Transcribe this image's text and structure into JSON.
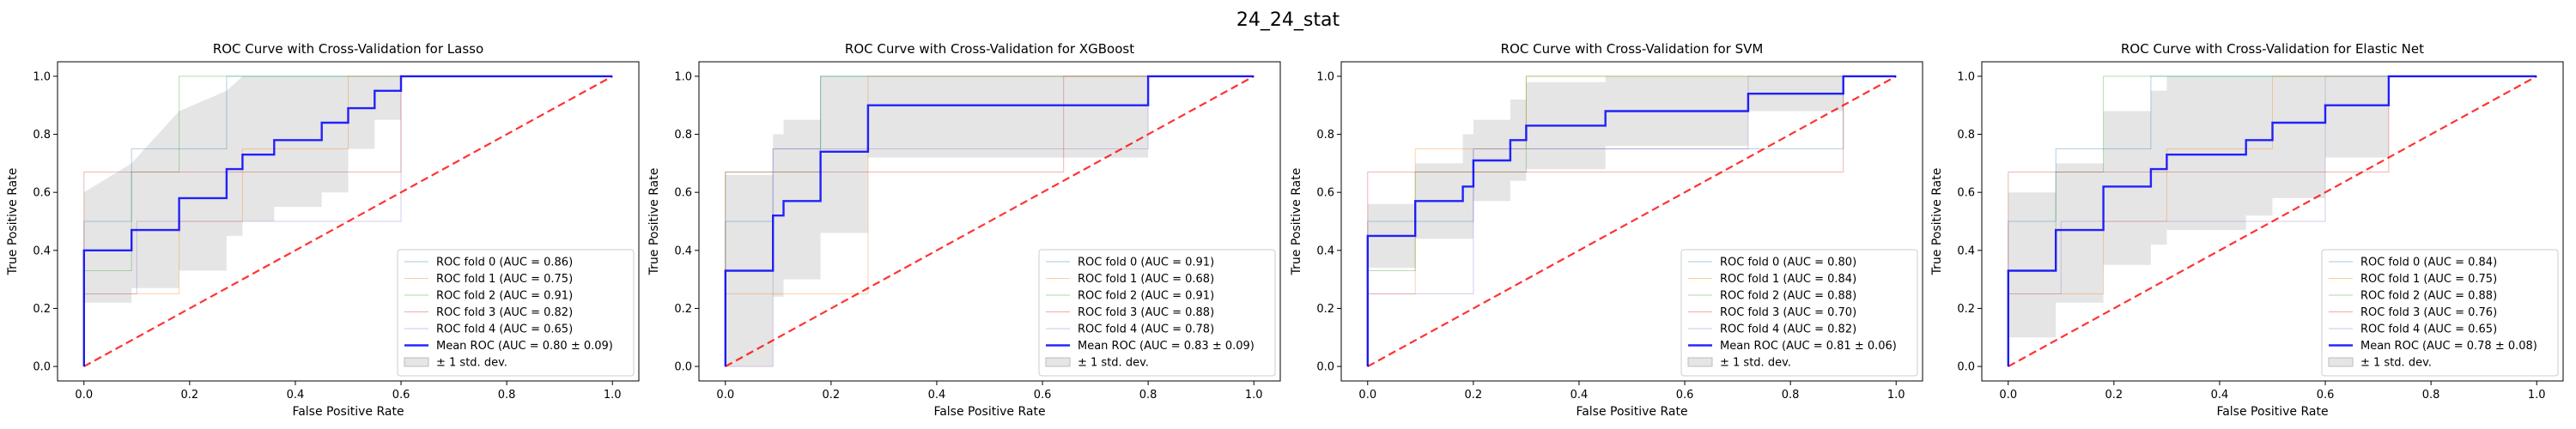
{
  "suptitle": "24_24_stat",
  "chart_data": [
    {
      "type": "line",
      "title": "ROC Curve with Cross-Validation for Lasso",
      "xlabel": "False Positive Rate",
      "ylabel": "True Positive Rate",
      "xlim": [
        -0.05,
        1.05
      ],
      "ylim": [
        -0.05,
        1.05
      ],
      "xticks": [
        "0.0",
        "0.2",
        "0.4",
        "0.6",
        "0.8",
        "1.0"
      ],
      "yticks": [
        "0.0",
        "0.2",
        "0.4",
        "0.6",
        "0.8",
        "1.0"
      ],
      "legend_position": "lower right",
      "series": [
        {
          "name": "ROC fold 0 (AUC = 0.86)",
          "color": "#1f77b4",
          "x": [
            0,
            0,
            0.09,
            0.09,
            0.27,
            0.27,
            0.55,
            0.55,
            1
          ],
          "y": [
            0,
            0.5,
            0.5,
            0.75,
            0.75,
            1,
            1,
            1,
            1
          ]
        },
        {
          "name": "ROC fold 1 (AUC = 0.75)",
          "color": "#ff7f0e",
          "x": [
            0,
            0,
            0.18,
            0.18,
            0.3,
            0.3,
            0.5,
            0.5,
            1
          ],
          "y": [
            0,
            0.25,
            0.25,
            0.5,
            0.5,
            0.75,
            0.75,
            1,
            1
          ]
        },
        {
          "name": "ROC fold 2 (AUC = 0.91)",
          "color": "#2ca02c",
          "x": [
            0,
            0,
            0.09,
            0.09,
            0.18,
            0.18,
            1
          ],
          "y": [
            0,
            0.33,
            0.33,
            0.67,
            0.67,
            1,
            1
          ]
        },
        {
          "name": "ROC fold 3 (AUC = 0.82)",
          "color": "#d62728",
          "x": [
            0,
            0,
            0.3,
            0.3,
            0.6,
            0.6,
            1
          ],
          "y": [
            0,
            0.67,
            0.67,
            0.67,
            0.67,
            1,
            1
          ]
        },
        {
          "name": "ROC fold 4 (AUC = 0.65)",
          "color": "#9467bd",
          "x": [
            0,
            0,
            0.1,
            0.1,
            0.3,
            0.3,
            0.6,
            0.6,
            1
          ],
          "y": [
            0,
            0.25,
            0.25,
            0.5,
            0.5,
            0.5,
            0.5,
            1,
            1
          ]
        }
      ],
      "mean": {
        "name": "Mean ROC (AUC = 0.80 ± 0.09)",
        "color": "#0000ff",
        "x": [
          0,
          0,
          0.09,
          0.09,
          0.18,
          0.18,
          0.27,
          0.27,
          0.3,
          0.3,
          0.36,
          0.36,
          0.45,
          0.45,
          0.5,
          0.5,
          0.55,
          0.55,
          0.6,
          0.6,
          1
        ],
        "y": [
          0,
          0.4,
          0.4,
          0.47,
          0.47,
          0.58,
          0.58,
          0.68,
          0.68,
          0.73,
          0.73,
          0.78,
          0.78,
          0.84,
          0.84,
          0.89,
          0.89,
          0.95,
          0.95,
          1,
          1
        ]
      },
      "band": {
        "name": "± 1 std. dev.",
        "upper": [
          0.6,
          0.6,
          0.7,
          0.7,
          0.88,
          0.88,
          0.95,
          0.95,
          1,
          1,
          1,
          1,
          1,
          1,
          1,
          1,
          1,
          1,
          1,
          1,
          1
        ],
        "lower": [
          0,
          0.22,
          0.22,
          0.27,
          0.27,
          0.33,
          0.33,
          0.45,
          0.45,
          0.5,
          0.5,
          0.55,
          0.55,
          0.6,
          0.6,
          0.75,
          0.75,
          0.85,
          0.85,
          1,
          1
        ]
      }
    },
    {
      "type": "line",
      "title": "ROC Curve with Cross-Validation for XGBoost",
      "xlabel": "False Positive Rate",
      "ylabel": "True Positive Rate",
      "xlim": [
        -0.05,
        1.05
      ],
      "ylim": [
        -0.05,
        1.05
      ],
      "xticks": [
        "0.0",
        "0.2",
        "0.4",
        "0.6",
        "0.8",
        "1.0"
      ],
      "yticks": [
        "0.0",
        "0.2",
        "0.4",
        "0.6",
        "0.8",
        "1.0"
      ],
      "legend_position": "lower right",
      "series": [
        {
          "name": "ROC fold 0 (AUC = 0.91)",
          "color": "#1f77b4",
          "x": [
            0,
            0,
            0.09,
            0.09,
            0.18,
            0.18,
            1
          ],
          "y": [
            0,
            0.5,
            0.5,
            0.75,
            0.75,
            1,
            1
          ]
        },
        {
          "name": "ROC fold 1 (AUC = 0.68)",
          "color": "#ff7f0e",
          "x": [
            0,
            0,
            0.09,
            0.09,
            0.27,
            0.27,
            1
          ],
          "y": [
            0,
            0.25,
            0.25,
            0.25,
            0.25,
            1,
            1
          ]
        },
        {
          "name": "ROC fold 2 (AUC = 0.91)",
          "color": "#2ca02c",
          "x": [
            0,
            0,
            0.09,
            0.09,
            0.18,
            0.18,
            1
          ],
          "y": [
            0,
            0.67,
            0.67,
            0.67,
            0.67,
            1,
            1
          ]
        },
        {
          "name": "ROC fold 3 (AUC = 0.88)",
          "color": "#d62728",
          "x": [
            0,
            0,
            0.09,
            0.09,
            0.64,
            0.64,
            1
          ],
          "y": [
            0,
            0.67,
            0.67,
            0.67,
            0.67,
            1,
            1
          ]
        },
        {
          "name": "ROC fold 4 (AUC = 0.78)",
          "color": "#9467bd",
          "x": [
            0,
            0,
            0.09,
            0.09,
            0.8,
            0.8,
            1
          ],
          "y": [
            0,
            0,
            0,
            0.75,
            0.75,
            1,
            1
          ]
        }
      ],
      "mean": {
        "name": "Mean ROC (AUC = 0.83 ± 0.09)",
        "color": "#0000ff",
        "x": [
          0,
          0,
          0.09,
          0.09,
          0.11,
          0.11,
          0.18,
          0.18,
          0.27,
          0.27,
          0.8,
          0.8,
          1
        ],
        "y": [
          0,
          0.33,
          0.33,
          0.52,
          0.52,
          0.57,
          0.57,
          0.74,
          0.74,
          0.9,
          0.9,
          1,
          1
        ]
      },
      "band": {
        "name": "± 1 std. dev.",
        "upper": [
          0.33,
          0.66,
          0.66,
          0.8,
          0.8,
          0.85,
          0.85,
          1,
          1,
          1,
          1,
          1,
          1
        ],
        "lower": [
          0,
          0,
          0,
          0.24,
          0.24,
          0.3,
          0.3,
          0.46,
          0.46,
          0.72,
          0.72,
          1,
          1
        ]
      }
    },
    {
      "type": "line",
      "title": "ROC Curve with Cross-Validation for SVM",
      "xlabel": "False Positive Rate",
      "ylabel": "True Positive Rate",
      "xlim": [
        -0.05,
        1.05
      ],
      "ylim": [
        -0.05,
        1.05
      ],
      "xticks": [
        "0.0",
        "0.2",
        "0.4",
        "0.6",
        "0.8",
        "1.0"
      ],
      "yticks": [
        "0.0",
        "0.2",
        "0.4",
        "0.6",
        "0.8",
        "1.0"
      ],
      "legend_position": "lower right",
      "series": [
        {
          "name": "ROC fold 0 (AUC = 0.80)",
          "color": "#1f77b4",
          "x": [
            0,
            0,
            0.2,
            0.2,
            0.9,
            0.9,
            1
          ],
          "y": [
            0,
            0.5,
            0.5,
            0.75,
            0.75,
            1,
            1
          ]
        },
        {
          "name": "ROC fold 1 (AUC = 0.84)",
          "color": "#ff7f0e",
          "x": [
            0,
            0,
            0.09,
            0.09,
            0.3,
            0.3,
            1
          ],
          "y": [
            0,
            0.25,
            0.25,
            0.75,
            0.75,
            1,
            1
          ]
        },
        {
          "name": "ROC fold 2 (AUC = 0.88)",
          "color": "#2ca02c",
          "x": [
            0,
            0,
            0.09,
            0.09,
            0.3,
            0.3,
            1
          ],
          "y": [
            0,
            0.33,
            0.33,
            0.67,
            0.67,
            1,
            1
          ]
        },
        {
          "name": "ROC fold 3 (AUC = 0.70)",
          "color": "#d62728",
          "x": [
            0,
            0,
            0.9,
            0.9,
            1
          ],
          "y": [
            0,
            0.67,
            0.67,
            1,
            1
          ]
        },
        {
          "name": "ROC fold 4 (AUC = 0.82)",
          "color": "#9467bd",
          "x": [
            0,
            0,
            0.2,
            0.2,
            0.72,
            0.72,
            1
          ],
          "y": [
            0,
            0.25,
            0.25,
            0.75,
            0.75,
            1,
            1
          ]
        }
      ],
      "mean": {
        "name": "Mean ROC (AUC = 0.81 ± 0.06)",
        "color": "#0000ff",
        "x": [
          0,
          0,
          0.09,
          0.09,
          0.18,
          0.18,
          0.2,
          0.2,
          0.27,
          0.27,
          0.3,
          0.3,
          0.45,
          0.45,
          0.72,
          0.72,
          0.9,
          0.9,
          1
        ],
        "y": [
          0,
          0.45,
          0.45,
          0.57,
          0.57,
          0.62,
          0.62,
          0.71,
          0.71,
          0.78,
          0.78,
          0.83,
          0.83,
          0.88,
          0.88,
          0.94,
          0.94,
          1,
          1
        ]
      },
      "band": {
        "name": "± 1 std. dev.",
        "upper": [
          0.56,
          0.56,
          0.56,
          0.7,
          0.7,
          0.8,
          0.8,
          0.85,
          0.85,
          0.92,
          0.92,
          0.98,
          0.98,
          1,
          1,
          1,
          1,
          1,
          1
        ],
        "lower": [
          0,
          0.34,
          0.34,
          0.44,
          0.44,
          0.44,
          0.44,
          0.57,
          0.57,
          0.64,
          0.64,
          0.68,
          0.68,
          0.76,
          0.76,
          0.88,
          0.88,
          1,
          1
        ]
      }
    },
    {
      "type": "line",
      "title": "ROC Curve with Cross-Validation for Elastic Net",
      "xlabel": "False Positive Rate",
      "ylabel": "True Positive Rate",
      "xlim": [
        -0.05,
        1.05
      ],
      "ylim": [
        -0.05,
        1.05
      ],
      "xticks": [
        "0.0",
        "0.2",
        "0.4",
        "0.6",
        "0.8",
        "1.0"
      ],
      "yticks": [
        "0.0",
        "0.2",
        "0.4",
        "0.6",
        "0.8",
        "1.0"
      ],
      "legend_position": "lower right",
      "series": [
        {
          "name": "ROC fold 0 (AUC = 0.84)",
          "color": "#1f77b4",
          "x": [
            0,
            0,
            0.09,
            0.09,
            0.27,
            0.27,
            0.55,
            0.55,
            1
          ],
          "y": [
            0,
            0.5,
            0.5,
            0.75,
            0.75,
            1,
            1,
            1,
            1
          ]
        },
        {
          "name": "ROC fold 1 (AUC = 0.75)",
          "color": "#ff7f0e",
          "x": [
            0,
            0,
            0.18,
            0.18,
            0.3,
            0.3,
            0.5,
            0.5,
            1
          ],
          "y": [
            0,
            0.25,
            0.25,
            0.5,
            0.5,
            0.75,
            0.75,
            1,
            1
          ]
        },
        {
          "name": "ROC fold 2 (AUC = 0.88)",
          "color": "#2ca02c",
          "x": [
            0,
            0,
            0.09,
            0.09,
            0.18,
            0.18,
            1
          ],
          "y": [
            0,
            0.33,
            0.33,
            0.67,
            0.67,
            1,
            1
          ]
        },
        {
          "name": "ROC fold 3 (AUC = 0.76)",
          "color": "#d62728",
          "x": [
            0,
            0,
            0.3,
            0.3,
            0.72,
            0.72,
            1
          ],
          "y": [
            0,
            0.67,
            0.67,
            0.67,
            0.67,
            1,
            1
          ]
        },
        {
          "name": "ROC fold 4 (AUC = 0.65)",
          "color": "#9467bd",
          "x": [
            0,
            0,
            0.1,
            0.1,
            0.3,
            0.3,
            0.6,
            0.6,
            1
          ],
          "y": [
            0,
            0.25,
            0.25,
            0.5,
            0.5,
            0.5,
            0.5,
            1,
            1
          ]
        }
      ],
      "mean": {
        "name": "Mean ROC (AUC = 0.78 ± 0.08)",
        "color": "#0000ff",
        "x": [
          0,
          0,
          0.09,
          0.09,
          0.18,
          0.18,
          0.27,
          0.27,
          0.3,
          0.3,
          0.45,
          0.45,
          0.5,
          0.5,
          0.6,
          0.6,
          0.72,
          0.72,
          1
        ],
        "y": [
          0,
          0.33,
          0.33,
          0.47,
          0.47,
          0.62,
          0.62,
          0.68,
          0.68,
          0.73,
          0.73,
          0.78,
          0.78,
          0.84,
          0.84,
          0.9,
          0.9,
          1,
          1
        ]
      },
      "band": {
        "name": "± 1 std. dev.",
        "upper": [
          0.6,
          0.6,
          0.6,
          0.7,
          0.7,
          0.88,
          0.88,
          0.95,
          0.95,
          1,
          1,
          1,
          1,
          1,
          1,
          1,
          1,
          1,
          1
        ],
        "lower": [
          0,
          0.1,
          0.1,
          0.22,
          0.22,
          0.35,
          0.35,
          0.42,
          0.42,
          0.47,
          0.47,
          0.52,
          0.52,
          0.58,
          0.58,
          0.72,
          0.72,
          1,
          1
        ]
      }
    }
  ]
}
